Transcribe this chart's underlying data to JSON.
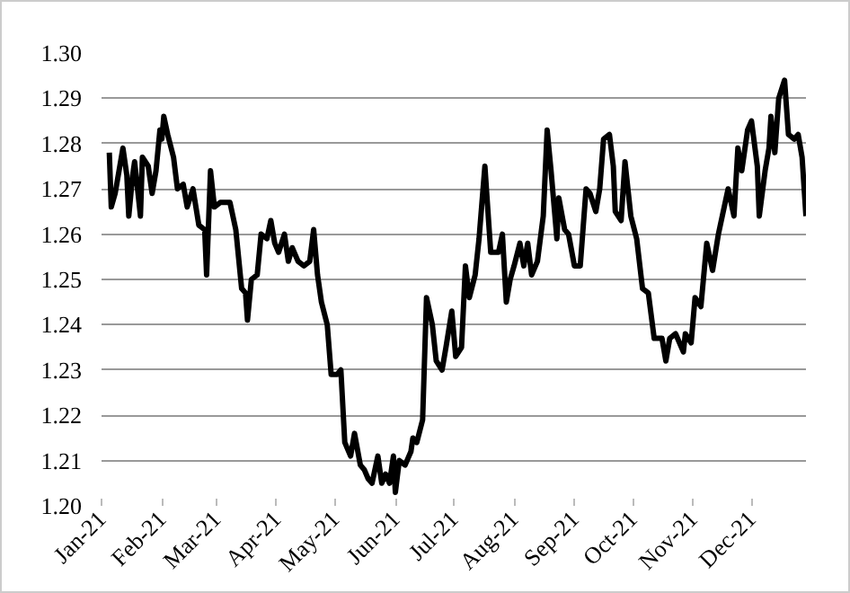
{
  "chart_data": {
    "type": "line",
    "x": [
      "2021-01-05",
      "2021-01-06",
      "2021-01-08",
      "2021-01-10",
      "2021-01-12",
      "2021-01-14",
      "2021-01-15",
      "2021-01-17",
      "2021-01-18",
      "2021-01-21",
      "2021-01-22",
      "2021-01-25",
      "2021-01-27",
      "2021-01-29",
      "2021-01-31",
      "2021-02-01",
      "2021-02-02",
      "2021-02-04",
      "2021-02-07",
      "2021-02-09",
      "2021-02-12",
      "2021-02-14",
      "2021-02-17",
      "2021-02-20",
      "2021-02-23",
      "2021-02-24",
      "2021-02-26",
      "2021-02-28",
      "2021-03-03",
      "2021-03-08",
      "2021-03-11",
      "2021-03-14",
      "2021-03-16",
      "2021-03-17",
      "2021-03-19",
      "2021-03-22",
      "2021-03-24",
      "2021-03-27",
      "2021-03-29",
      "2021-03-31",
      "2021-04-02",
      "2021-04-05",
      "2021-04-07",
      "2021-04-09",
      "2021-04-12",
      "2021-04-15",
      "2021-04-18",
      "2021-04-20",
      "2021-04-22",
      "2021-04-24",
      "2021-04-27",
      "2021-04-29",
      "2021-05-02",
      "2021-05-04",
      "2021-05-06",
      "2021-05-09",
      "2021-05-11",
      "2021-05-14",
      "2021-05-16",
      "2021-05-18",
      "2021-05-20",
      "2021-05-23",
      "2021-05-25",
      "2021-05-27",
      "2021-05-29",
      "2021-05-31",
      "2021-06-01",
      "2021-06-03",
      "2021-06-06",
      "2021-06-09",
      "2021-06-10",
      "2021-06-12",
      "2021-06-15",
      "2021-06-17",
      "2021-06-20",
      "2021-06-22",
      "2021-06-25",
      "2021-06-27",
      "2021-06-30",
      "2021-07-02",
      "2021-07-05",
      "2021-07-07",
      "2021-07-09",
      "2021-07-12",
      "2021-07-14",
      "2021-07-17",
      "2021-07-20",
      "2021-07-24",
      "2021-07-26",
      "2021-07-28",
      "2021-07-30",
      "2021-08-01",
      "2021-08-04",
      "2021-08-06",
      "2021-08-08",
      "2021-08-10",
      "2021-08-13",
      "2021-08-16",
      "2021-08-18",
      "2021-08-20",
      "2021-08-23",
      "2021-08-24",
      "2021-08-27",
      "2021-08-29",
      "2021-09-01",
      "2021-09-04",
      "2021-09-07",
      "2021-09-09",
      "2021-09-12",
      "2021-09-14",
      "2021-09-16",
      "2021-09-19",
      "2021-09-21",
      "2021-09-22",
      "2021-09-25",
      "2021-09-27",
      "2021-09-30",
      "2021-10-03",
      "2021-10-06",
      "2021-10-09",
      "2021-10-12",
      "2021-10-16",
      "2021-10-18",
      "2021-10-20",
      "2021-10-23",
      "2021-10-27",
      "2021-10-28",
      "2021-10-31",
      "2021-11-02",
      "2021-11-05",
      "2021-11-08",
      "2021-11-11",
      "2021-11-14",
      "2021-11-16",
      "2021-11-19",
      "2021-11-22",
      "2021-11-24",
      "2021-11-26",
      "2021-11-29",
      "2021-12-01",
      "2021-12-04",
      "2021-12-05",
      "2021-12-08",
      "2021-12-10",
      "2021-12-11",
      "2021-12-13",
      "2021-12-15",
      "2021-12-18",
      "2021-12-20",
      "2021-12-23",
      "2021-12-25",
      "2021-12-27",
      "2021-12-29"
    ],
    "series": [
      {
        "color": "#000000",
        "values": [
          1.278,
          1.266,
          1.269,
          1.274,
          1.279,
          1.273,
          1.264,
          1.273,
          1.276,
          1.264,
          1.277,
          1.275,
          1.269,
          1.274,
          1.283,
          1.281,
          1.286,
          1.282,
          1.277,
          1.27,
          1.271,
          1.266,
          1.27,
          1.262,
          1.261,
          1.251,
          1.274,
          1.266,
          1.267,
          1.267,
          1.261,
          1.248,
          1.247,
          1.241,
          1.25,
          1.251,
          1.26,
          1.259,
          1.263,
          1.258,
          1.256,
          1.26,
          1.254,
          1.257,
          1.254,
          1.253,
          1.254,
          1.261,
          1.251,
          1.245,
          1.24,
          1.229,
          1.229,
          1.23,
          1.214,
          1.211,
          1.216,
          1.209,
          1.208,
          1.206,
          1.205,
          1.211,
          1.205,
          1.207,
          1.205,
          1.211,
          1.203,
          1.21,
          1.209,
          1.212,
          1.215,
          1.214,
          1.219,
          1.246,
          1.24,
          1.232,
          1.23,
          1.235,
          1.243,
          1.233,
          1.235,
          1.253,
          1.246,
          1.251,
          1.259,
          1.275,
          1.256,
          1.256,
          1.26,
          1.245,
          1.25,
          1.253,
          1.258,
          1.253,
          1.258,
          1.251,
          1.254,
          1.264,
          1.283,
          1.274,
          1.259,
          1.268,
          1.261,
          1.26,
          1.253,
          1.253,
          1.27,
          1.269,
          1.265,
          1.27,
          1.281,
          1.282,
          1.275,
          1.265,
          1.263,
          1.276,
          1.264,
          1.259,
          1.248,
          1.247,
          1.237,
          1.237,
          1.232,
          1.237,
          1.238,
          1.234,
          1.238,
          1.236,
          1.246,
          1.244,
          1.258,
          1.252,
          1.26,
          1.264,
          1.27,
          1.264,
          1.279,
          1.274,
          1.283,
          1.285,
          1.275,
          1.264,
          1.274,
          1.279,
          1.286,
          1.278,
          1.29,
          1.294,
          1.282,
          1.281,
          1.282,
          1.277,
          1.264
        ]
      }
    ],
    "xlim": [
      "2021-01-01",
      "2021-12-29"
    ],
    "xticks": [
      {
        "value": "2021-01-01",
        "label": "Jan-21"
      },
      {
        "value": "2021-02-01",
        "label": "Feb-21"
      },
      {
        "value": "2021-03-01",
        "label": "Mar-21"
      },
      {
        "value": "2021-04-01",
        "label": "Apr-21"
      },
      {
        "value": "2021-05-01",
        "label": "May-21"
      },
      {
        "value": "2021-06-01",
        "label": "Jun-21"
      },
      {
        "value": "2021-07-01",
        "label": "Jul-21"
      },
      {
        "value": "2021-08-01",
        "label": "Aug-21"
      },
      {
        "value": "2021-09-01",
        "label": "Sep-21"
      },
      {
        "value": "2021-10-01",
        "label": "Oct-21"
      },
      {
        "value": "2021-11-01",
        "label": "Nov-21"
      },
      {
        "value": "2021-12-01",
        "label": "Dec-21"
      }
    ],
    "ylim": [
      1.2,
      1.3
    ],
    "yticks": [
      {
        "value": 1.2,
        "label": "1.20"
      },
      {
        "value": 1.21,
        "label": "1.21"
      },
      {
        "value": 1.22,
        "label": "1.22"
      },
      {
        "value": 1.23,
        "label": "1.23"
      },
      {
        "value": 1.24,
        "label": "1.24"
      },
      {
        "value": 1.25,
        "label": "1.25"
      },
      {
        "value": 1.26,
        "label": "1.26"
      },
      {
        "value": 1.27,
        "label": "1.27"
      },
      {
        "value": 1.28,
        "label": "1.28"
      },
      {
        "value": 1.29,
        "label": "1.29"
      },
      {
        "value": 1.3,
        "label": "1.30"
      }
    ],
    "grid": "y",
    "line_style": "solid"
  }
}
